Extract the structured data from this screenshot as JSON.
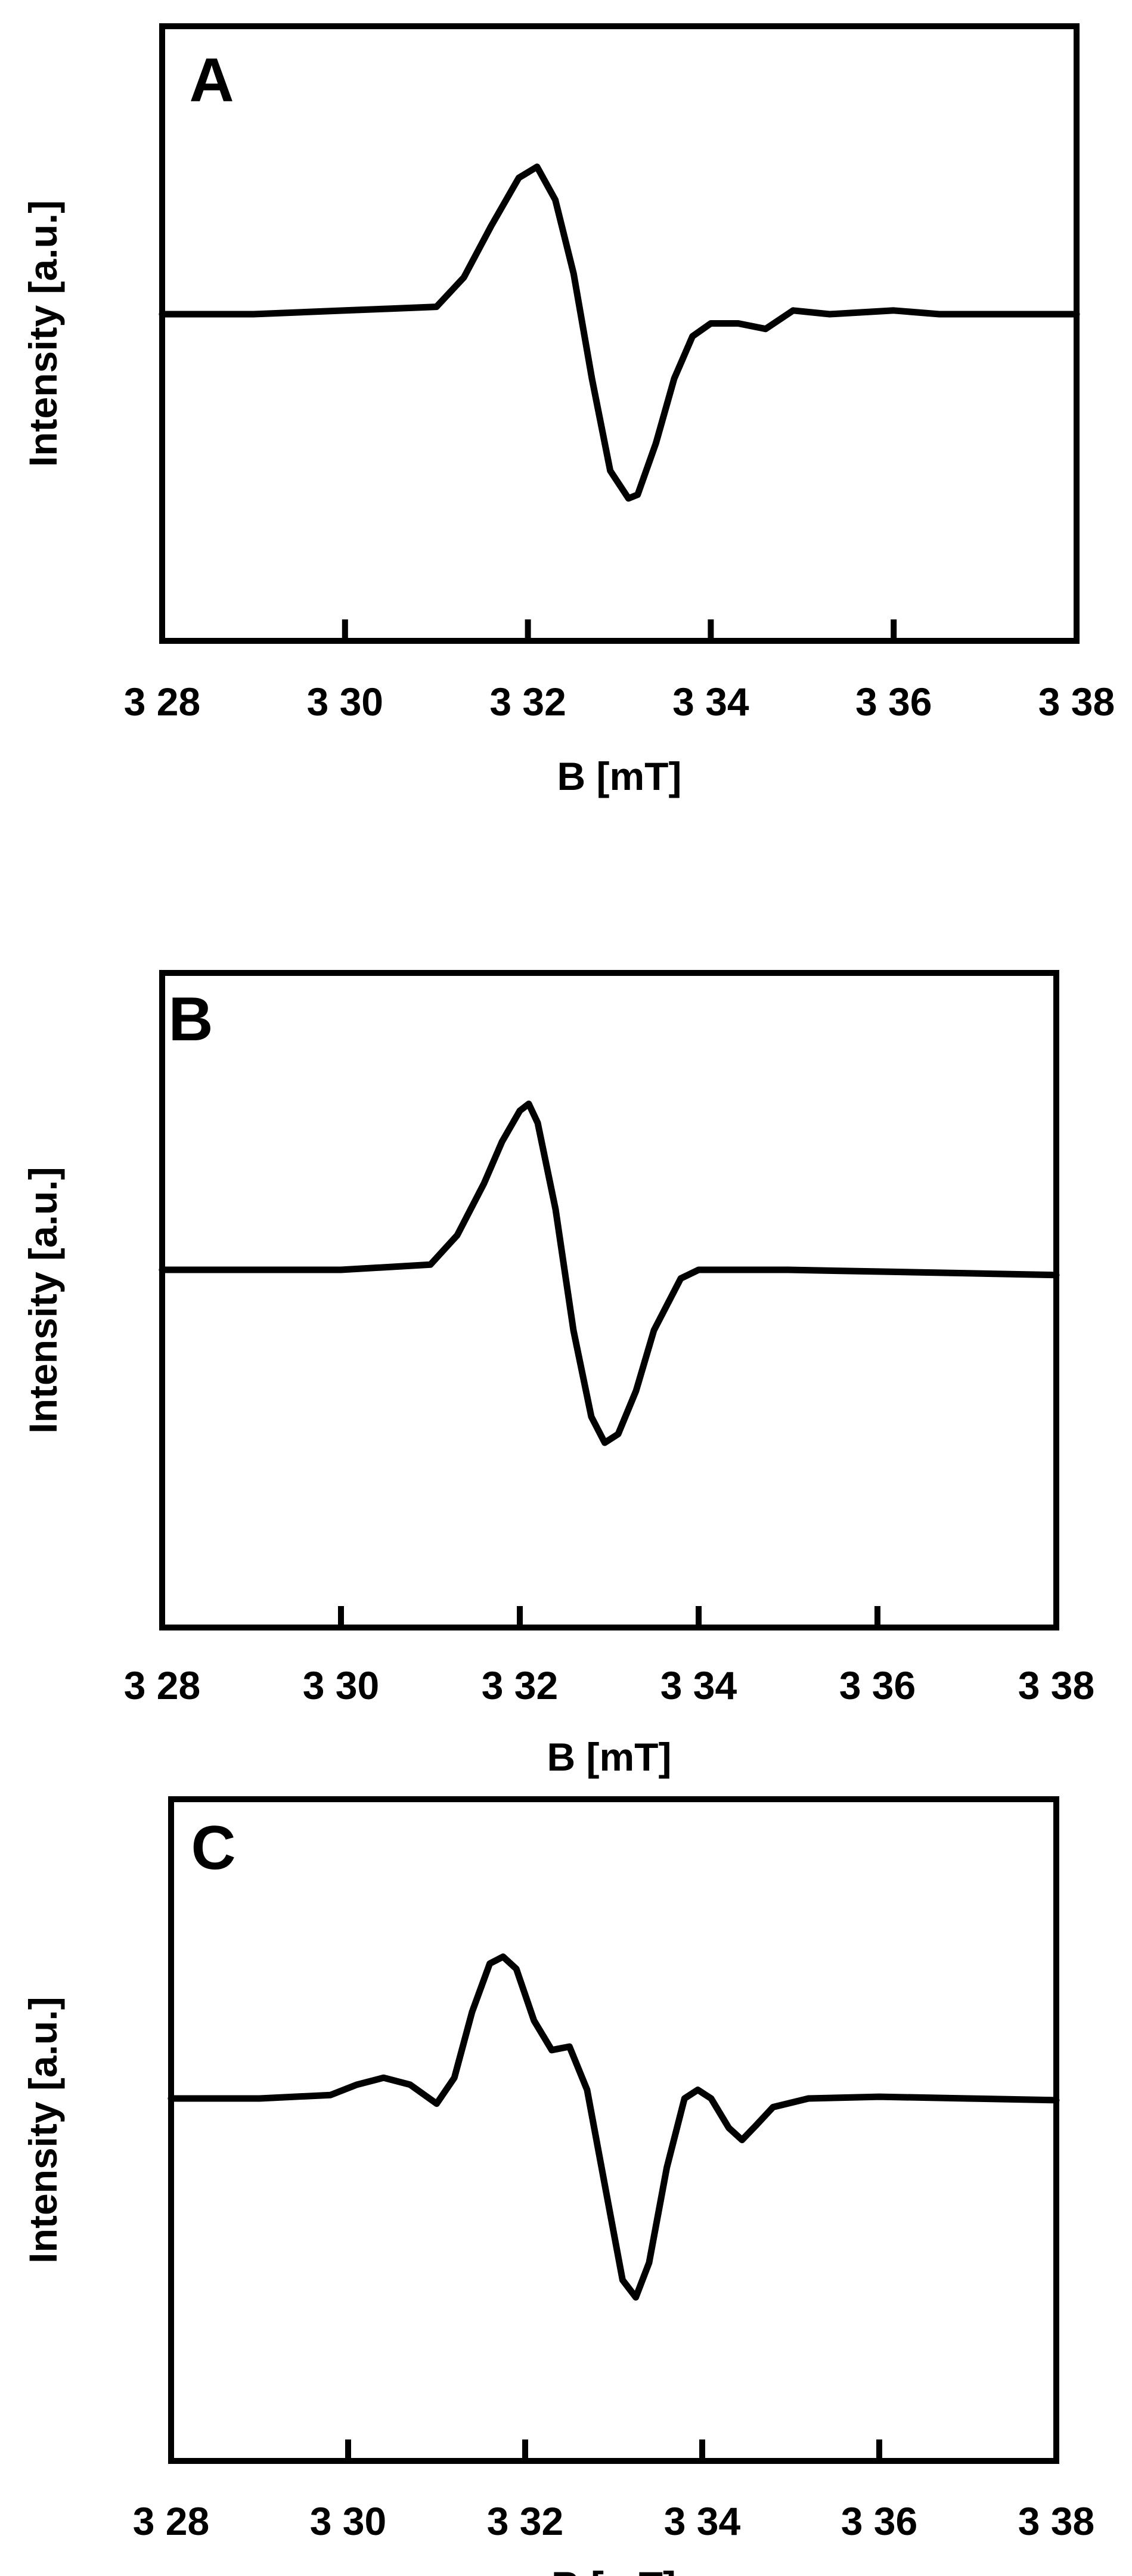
{
  "chart_data": [
    {
      "type": "line",
      "panel_label": "A",
      "xlabel": "B [mT]",
      "ylabel": "Intensity [a.u.]",
      "xlim": [
        328,
        338
      ],
      "ylim": [
        -1.1,
        1.0
      ],
      "xticks": [
        328,
        330,
        332,
        334,
        336,
        338
      ],
      "xtick_labels": [
        "3 28",
        "3 30",
        "3 32",
        "3 34",
        "3 36",
        "3 38"
      ],
      "grid": false,
      "legend": "none",
      "color": "#000000",
      "series": [
        {
          "x": [
            328.0,
            329.0,
            330.0,
            330.5,
            331.0,
            331.3,
            331.6,
            331.9,
            332.1,
            332.3,
            332.5,
            332.7,
            332.9,
            333.1,
            333.2,
            333.4,
            333.6,
            333.8,
            334.0,
            334.3,
            334.6,
            334.9,
            335.3,
            336.0,
            336.5,
            337.0,
            338.0
          ],
          "y": [
            0.0,
            0.0,
            0.02,
            0.03,
            0.04,
            0.2,
            0.48,
            0.74,
            0.8,
            0.62,
            0.22,
            -0.35,
            -0.85,
            -1.0,
            -0.98,
            -0.7,
            -0.35,
            -0.12,
            -0.05,
            -0.05,
            -0.08,
            0.02,
            0.0,
            0.02,
            0.0,
            0.0,
            0.0
          ]
        }
      ]
    },
    {
      "type": "line",
      "panel_label": "B",
      "xlabel": "B [mT]",
      "ylabel": "Intensity [a.u.]",
      "xlim": [
        328,
        338
      ],
      "ylim": [
        -1.6,
        1.0
      ],
      "xticks": [
        328,
        330,
        332,
        334,
        336,
        338
      ],
      "xtick_labels": [
        "3 28",
        "3 30",
        "3 32",
        "3 34",
        "3 36",
        "3 38"
      ],
      "grid": false,
      "legend": "none",
      "color": "#000000",
      "series": [
        {
          "x": [
            328.0,
            329.0,
            330.0,
            331.0,
            331.3,
            331.6,
            331.8,
            332.0,
            332.1,
            332.2,
            332.4,
            332.6,
            332.8,
            332.95,
            333.1,
            333.3,
            333.5,
            333.8,
            334.0,
            334.5,
            335.0,
            336.0,
            337.0,
            338.0
          ],
          "y": [
            0.0,
            0.0,
            0.0,
            0.03,
            0.2,
            0.5,
            0.74,
            0.92,
            0.96,
            0.85,
            0.35,
            -0.35,
            -0.85,
            -1.0,
            -0.95,
            -0.7,
            -0.35,
            -0.05,
            0.0,
            0.0,
            0.0,
            -0.01,
            -0.02,
            -0.03
          ]
        }
      ]
    },
    {
      "type": "line",
      "panel_label": "C",
      "xlabel": "B [mT]",
      "ylabel": "Intensity [a.u.]",
      "xlim": [
        328,
        338
      ],
      "ylim": [
        -1.6,
        1.0
      ],
      "xticks": [
        328,
        330,
        332,
        334,
        336,
        338
      ],
      "xtick_labels": [
        "3 28",
        "3 30",
        "3 32",
        "3 34",
        "3 36",
        "3 38"
      ],
      "grid": false,
      "legend": "none",
      "color": "#000000",
      "series": [
        {
          "x": [
            328.0,
            329.0,
            329.8,
            330.1,
            330.4,
            330.7,
            331.0,
            331.2,
            331.4,
            331.6,
            331.75,
            331.9,
            332.1,
            332.3,
            332.5,
            332.7,
            332.9,
            333.1,
            333.25,
            333.4,
            333.6,
            333.8,
            333.95,
            334.1,
            334.3,
            334.45,
            334.6,
            334.8,
            335.2,
            336.0,
            337.0,
            338.0
          ],
          "y": [
            0.0,
            0.0,
            0.02,
            0.08,
            0.12,
            0.08,
            -0.03,
            0.12,
            0.5,
            0.78,
            0.82,
            0.75,
            0.45,
            0.28,
            0.3,
            0.05,
            -0.5,
            -1.05,
            -1.15,
            -0.95,
            -0.4,
            0.0,
            0.05,
            0.0,
            -0.17,
            -0.24,
            -0.16,
            -0.05,
            0.0,
            0.01,
            0.0,
            -0.01
          ]
        }
      ]
    }
  ]
}
